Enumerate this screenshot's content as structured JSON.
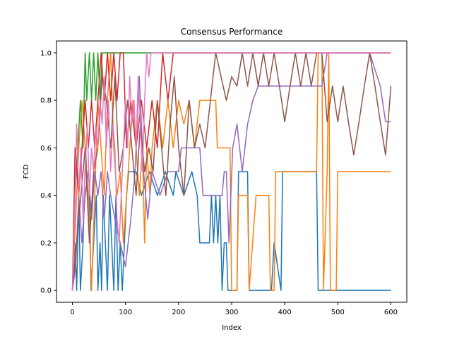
{
  "chart_data": {
    "type": "line",
    "title": "Consensus Performance",
    "xlabel": "Index",
    "ylabel": "FCD",
    "xlim": [
      -30,
      630
    ],
    "ylim": [
      -0.05,
      1.05
    ],
    "xticks": [
      0,
      100,
      200,
      300,
      400,
      500,
      600
    ],
    "yticks": [
      0.0,
      0.2,
      0.4,
      0.6,
      0.8,
      1.0
    ],
    "ytick_labels": [
      "0.0",
      "0.2",
      "0.4",
      "0.6",
      "0.8",
      "1.0"
    ],
    "grid": false,
    "legend": "none",
    "series": [
      {
        "color": "#1f77b4",
        "points": [
          [
            0,
            0
          ],
          [
            5,
            0.2
          ],
          [
            8,
            0
          ],
          [
            12,
            0.4
          ],
          [
            15,
            0
          ],
          [
            20,
            0.2
          ],
          [
            25,
            0.6
          ],
          [
            28,
            0.4
          ],
          [
            32,
            0.4
          ],
          [
            35,
            0
          ],
          [
            40,
            0.2
          ],
          [
            45,
            0.4
          ],
          [
            48,
            0
          ],
          [
            52,
            0.2
          ],
          [
            55,
            0
          ],
          [
            58,
            0.4
          ],
          [
            62,
            0.2
          ],
          [
            66,
            0
          ],
          [
            70,
            0.4
          ],
          [
            74,
            0.2
          ],
          [
            78,
            0
          ],
          [
            82,
            0.4
          ],
          [
            86,
            0
          ],
          [
            90,
            0.2
          ],
          [
            94,
            0
          ],
          [
            98,
            0.2
          ],
          [
            102,
            0.4
          ],
          [
            106,
            0.5
          ],
          [
            120,
            0.5
          ],
          [
            130,
            0.4
          ],
          [
            145,
            0.5
          ],
          [
            160,
            0.4
          ],
          [
            175,
            0.5
          ],
          [
            190,
            0.4
          ],
          [
            195,
            0.5
          ],
          [
            210,
            0.4
          ],
          [
            225,
            0.5
          ],
          [
            235,
            0.4
          ],
          [
            240,
            0.2
          ],
          [
            258,
            0.2
          ],
          [
            262,
            0.4
          ],
          [
            266,
            0.2
          ],
          [
            270,
            0.4
          ],
          [
            274,
            0.2
          ],
          [
            278,
            0.4
          ],
          [
            282,
            0
          ],
          [
            286,
            0.2
          ],
          [
            290,
            0.2
          ],
          [
            293,
            0
          ],
          [
            310,
            0
          ],
          [
            313,
            0.5
          ],
          [
            330,
            0.5
          ],
          [
            333,
            0
          ],
          [
            375,
            0
          ],
          [
            380,
            0.2
          ],
          [
            393,
            0
          ],
          [
            396,
            0.5
          ],
          [
            430,
            0.5
          ],
          [
            460,
            0.5
          ],
          [
            463,
            0
          ],
          [
            500,
            0
          ],
          [
            600,
            0
          ]
        ]
      },
      {
        "color": "#ff7f0e",
        "points": [
          [
            0,
            0
          ],
          [
            6,
            0.3
          ],
          [
            12,
            0.6
          ],
          [
            18,
            0.8
          ],
          [
            24,
            0.6
          ],
          [
            30,
            0.4
          ],
          [
            36,
            0
          ],
          [
            42,
            0.4
          ],
          [
            48,
            0.8
          ],
          [
            54,
            0.6
          ],
          [
            60,
            0.4
          ],
          [
            66,
            0.8
          ],
          [
            72,
            1.0
          ],
          [
            78,
            0.6
          ],
          [
            84,
            0.4
          ],
          [
            90,
            0.5
          ],
          [
            96,
            0.2
          ],
          [
            102,
            0.4
          ],
          [
            108,
            0.6
          ],
          [
            114,
            0.8
          ],
          [
            120,
            0.6
          ],
          [
            126,
            0.4
          ],
          [
            132,
            0.6
          ],
          [
            136,
            0.2
          ],
          [
            140,
            0.6
          ],
          [
            146,
            0.4
          ],
          [
            150,
            0.6
          ],
          [
            160,
            0.8
          ],
          [
            170,
            0.6
          ],
          [
            180,
            0.8
          ],
          [
            190,
            0.6
          ],
          [
            200,
            0.8
          ],
          [
            210,
            0.7
          ],
          [
            220,
            0.8
          ],
          [
            230,
            0.6
          ],
          [
            240,
            0.8
          ],
          [
            250,
            0.8
          ],
          [
            270,
            0.8
          ],
          [
            273,
            0.6
          ],
          [
            297,
            0.6
          ],
          [
            300,
            0
          ],
          [
            310,
            0
          ],
          [
            313,
            0.4
          ],
          [
            330,
            0.4
          ],
          [
            333,
            0
          ],
          [
            346,
            0.4
          ],
          [
            370,
            0.4
          ],
          [
            373,
            0
          ],
          [
            380,
            0
          ],
          [
            383,
            0.5
          ],
          [
            460,
            0.5
          ],
          [
            463,
            1.0
          ],
          [
            470,
            1.0
          ],
          [
            473,
            0
          ],
          [
            480,
            0.5
          ],
          [
            483,
            1.0
          ],
          [
            486,
            0
          ],
          [
            497,
            0
          ],
          [
            500,
            0.5
          ],
          [
            600,
            0.5
          ]
        ]
      },
      {
        "color": "#2ca02c",
        "points": [
          [
            0,
            0
          ],
          [
            5,
            0.4
          ],
          [
            10,
            0.6
          ],
          [
            15,
            0.8
          ],
          [
            20,
            0.6
          ],
          [
            24,
            1.0
          ],
          [
            27,
            0.8
          ],
          [
            32,
            1.0
          ],
          [
            36,
            0.8
          ],
          [
            40,
            1.0
          ],
          [
            44,
            0.8
          ],
          [
            48,
            1.0
          ],
          [
            52,
            0.8
          ],
          [
            56,
            1.0
          ],
          [
            60,
            1.0
          ],
          [
            600,
            1.0
          ]
        ]
      },
      {
        "color": "#d62728",
        "points": [
          [
            0,
            0
          ],
          [
            5,
            0.6
          ],
          [
            12,
            0.4
          ],
          [
            18,
            0.6
          ],
          [
            24,
            0.8
          ],
          [
            30,
            0.6
          ],
          [
            36,
            0.8
          ],
          [
            42,
            0.6
          ],
          [
            48,
            0.8
          ],
          [
            54,
            1.0
          ],
          [
            60,
            0.8
          ],
          [
            66,
            1.0
          ],
          [
            72,
            0.8
          ],
          [
            78,
            1.0
          ],
          [
            84,
            0.8
          ],
          [
            90,
            1.0
          ],
          [
            96,
            1.0
          ],
          [
            102,
            0.6
          ],
          [
            110,
            0.8
          ],
          [
            120,
            0.6
          ],
          [
            130,
            0.8
          ],
          [
            140,
            0.6
          ],
          [
            150,
            0.8
          ],
          [
            160,
            0.6
          ],
          [
            170,
            1.0
          ],
          [
            180,
            0.8
          ],
          [
            190,
            1.0
          ],
          [
            600,
            1.0
          ]
        ]
      },
      {
        "color": "#9467bd",
        "points": [
          [
            0,
            0
          ],
          [
            6,
            0.1
          ],
          [
            12,
            0.4
          ],
          [
            18,
            0.2
          ],
          [
            24,
            0.4
          ],
          [
            30,
            0.5
          ],
          [
            36,
            0.3
          ],
          [
            42,
            0.5
          ],
          [
            48,
            0.4
          ],
          [
            54,
            0.5
          ],
          [
            60,
            0.3
          ],
          [
            66,
            0.5
          ],
          [
            72,
            0.4
          ],
          [
            80,
            0.3
          ],
          [
            90,
            0.2
          ],
          [
            100,
            0.1
          ],
          [
            110,
            0.3
          ],
          [
            118,
            0.5
          ],
          [
            126,
            0.9
          ],
          [
            134,
            0.5
          ],
          [
            142,
            0.3
          ],
          [
            150,
            0.5
          ],
          [
            165,
            0.4
          ],
          [
            180,
            0.5
          ],
          [
            200,
            0.5
          ],
          [
            205,
            0.6
          ],
          [
            240,
            0.6
          ],
          [
            246,
            0.4
          ],
          [
            282,
            0.4
          ],
          [
            286,
            0.5
          ],
          [
            290,
            0.5
          ],
          [
            295,
            0.2
          ],
          [
            302,
            0.6
          ],
          [
            310,
            0.7
          ],
          [
            320,
            0.5
          ],
          [
            330,
            0.7
          ],
          [
            340,
            0.8
          ],
          [
            350,
            0.86
          ],
          [
            400,
            0.86
          ],
          [
            420,
            0.86
          ],
          [
            440,
            0.86
          ],
          [
            460,
            0.86
          ],
          [
            470,
            0.86
          ],
          [
            480,
            1.0
          ],
          [
            520,
            1.0
          ],
          [
            560,
            1.0
          ],
          [
            580,
            0.86
          ],
          [
            590,
            0.71
          ],
          [
            600,
            0.71
          ]
        ]
      },
      {
        "color": "#8c564b",
        "points": [
          [
            0,
            0
          ],
          [
            8,
            0.2
          ],
          [
            16,
            0.4
          ],
          [
            24,
            0.6
          ],
          [
            32,
            0.2
          ],
          [
            40,
            0.5
          ],
          [
            48,
            0.6
          ],
          [
            56,
            0.9
          ],
          [
            64,
            0.8
          ],
          [
            72,
            0.6
          ],
          [
            80,
            0.9
          ],
          [
            88,
            0.5
          ],
          [
            96,
            0.6
          ],
          [
            104,
            0.8
          ],
          [
            112,
            0.6
          ],
          [
            120,
            0.4
          ],
          [
            128,
            0.7
          ],
          [
            136,
            0.5
          ],
          [
            144,
            0.6
          ],
          [
            152,
            0.5
          ],
          [
            160,
            0.8
          ],
          [
            168,
            0.6
          ],
          [
            176,
            0.4
          ],
          [
            184,
            0.7
          ],
          [
            192,
            0.9
          ],
          [
            200,
            0.6
          ],
          [
            210,
            0.4
          ],
          [
            220,
            0.8
          ],
          [
            230,
            0.6
          ],
          [
            240,
            0.7
          ],
          [
            250,
            0.6
          ],
          [
            260,
            0.8
          ],
          [
            270,
            1.0
          ],
          [
            280,
            0.9
          ],
          [
            290,
            0.8
          ],
          [
            300,
            0.9
          ],
          [
            310,
            0.86
          ],
          [
            320,
            1.0
          ],
          [
            330,
            0.86
          ],
          [
            340,
            1.0
          ],
          [
            350,
            0.86
          ],
          [
            360,
            1.0
          ],
          [
            370,
            0.86
          ],
          [
            380,
            1.0
          ],
          [
            390,
            0.86
          ],
          [
            400,
            0.71
          ],
          [
            410,
            0.86
          ],
          [
            420,
            1.0
          ],
          [
            430,
            0.86
          ],
          [
            440,
            1.0
          ],
          [
            450,
            0.86
          ],
          [
            460,
            1.0
          ],
          [
            470,
            1.0
          ],
          [
            480,
            0.71
          ],
          [
            490,
            0.86
          ],
          [
            500,
            0.71
          ],
          [
            510,
            0.86
          ],
          [
            520,
            0.71
          ],
          [
            530,
            0.57
          ],
          [
            540,
            0.71
          ],
          [
            550,
            0.86
          ],
          [
            560,
            1.0
          ],
          [
            570,
            0.86
          ],
          [
            580,
            0.71
          ],
          [
            590,
            0.57
          ],
          [
            600,
            0.86
          ]
        ]
      },
      {
        "color": "#e377c2",
        "points": [
          [
            0,
            0
          ],
          [
            4,
            0.3
          ],
          [
            8,
            0.7
          ],
          [
            12,
            0.4
          ],
          [
            16,
            0.6
          ],
          [
            20,
            0.3
          ],
          [
            24,
            0.5
          ],
          [
            28,
            0.7
          ],
          [
            32,
            0.4
          ],
          [
            36,
            0.6
          ],
          [
            40,
            0.5
          ],
          [
            44,
            0.7
          ],
          [
            48,
            0.6
          ],
          [
            52,
            0.8
          ],
          [
            56,
            0.7
          ],
          [
            60,
            0.9
          ],
          [
            64,
            0.6
          ],
          [
            68,
            0.8
          ],
          [
            72,
            0.5
          ],
          [
            76,
            0.7
          ],
          [
            80,
            0.6
          ],
          [
            84,
            0.3
          ],
          [
            88,
            0.2
          ],
          [
            92,
            0.4
          ],
          [
            96,
            0.6
          ],
          [
            100,
            0.8
          ],
          [
            104,
            0.6
          ],
          [
            108,
            0.9
          ],
          [
            112,
            0.7
          ],
          [
            116,
            0.8
          ],
          [
            120,
            0.6
          ],
          [
            124,
            0.9
          ],
          [
            128,
            0.7
          ],
          [
            132,
            0.5
          ],
          [
            136,
            0.8
          ],
          [
            140,
            1.0
          ],
          [
            144,
            0.9
          ],
          [
            148,
            1.0
          ],
          [
            600,
            1.0
          ]
        ]
      }
    ]
  }
}
